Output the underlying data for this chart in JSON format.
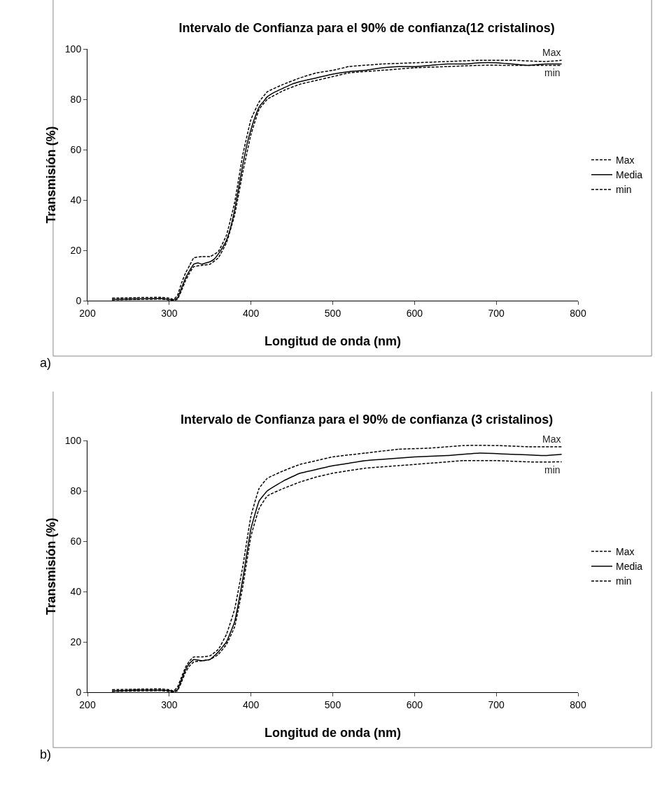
{
  "chart_data": [
    {
      "type": "line",
      "title": "Intervalo de Confianza para el 90% de confianza(12 cristalinos)",
      "xlabel": "Longitud de onda (nm)",
      "ylabel": "Transmisión (%)",
      "xlim": [
        200,
        800
      ],
      "xticks": [
        200,
        300,
        400,
        500,
        600,
        700,
        800
      ],
      "ylim": [
        0,
        100
      ],
      "yticks": [
        0,
        20,
        40,
        60,
        80,
        100
      ],
      "grid": false,
      "legend": "right",
      "marker": "none",
      "annotations": [
        "Max",
        "min",
        "a)"
      ],
      "series": [
        {
          "name": "Max",
          "color": "#000000",
          "line_style": "dashed",
          "x": [
            230,
            260,
            290,
            300,
            305,
            310,
            315,
            320,
            325,
            330,
            340,
            350,
            360,
            370,
            380,
            390,
            400,
            410,
            420,
            440,
            460,
            480,
            500,
            520,
            560,
            600,
            640,
            680,
            720,
            760,
            780
          ],
          "values": [
            1,
            1.2,
            1.3,
            1,
            0.5,
            2,
            7,
            11,
            14,
            17,
            17.5,
            17.5,
            19.5,
            26,
            39,
            58,
            72,
            79,
            83,
            86,
            88.5,
            90.5,
            91.5,
            93,
            94,
            94.5,
            95,
            95.5,
            95.5,
            95,
            95.5
          ]
        },
        {
          "name": "Media",
          "color": "#000000",
          "line_style": "solid",
          "x": [
            230,
            260,
            290,
            300,
            305,
            310,
            315,
            320,
            325,
            330,
            335,
            340,
            345,
            350,
            355,
            360,
            365,
            370,
            375,
            380,
            385,
            390,
            395,
            400,
            405,
            410,
            415,
            420,
            430,
            440,
            450,
            460,
            480,
            500,
            520,
            540,
            560,
            580,
            600,
            620,
            640,
            660,
            680,
            700,
            720,
            740,
            760,
            780
          ],
          "values": [
            0.5,
            0.7,
            0.8,
            0.5,
            0.3,
            1,
            5,
            9,
            12,
            14.5,
            15,
            14.5,
            15,
            15.5,
            16.5,
            18.5,
            21,
            24,
            29,
            36,
            45,
            54,
            62,
            68,
            73,
            77,
            79,
            81,
            83,
            84.5,
            86,
            87,
            88.5,
            90,
            91,
            91.5,
            92.5,
            93,
            93,
            93.5,
            94,
            94,
            94.5,
            94.5,
            94,
            93.5,
            94,
            94
          ]
        },
        {
          "name": "min",
          "color": "#000000",
          "line_style": "dashed",
          "x": [
            230,
            260,
            290,
            300,
            305,
            310,
            315,
            320,
            325,
            330,
            340,
            350,
            360,
            370,
            380,
            390,
            400,
            410,
            420,
            440,
            460,
            480,
            500,
            520,
            560,
            600,
            640,
            680,
            720,
            760,
            780
          ],
          "values": [
            0.3,
            0.5,
            0.6,
            0.3,
            0.2,
            0.5,
            4,
            8,
            11,
            13.5,
            14,
            14.5,
            17,
            23,
            34,
            51,
            66,
            76,
            80,
            83.5,
            86,
            87.5,
            89,
            90.5,
            91.5,
            92.5,
            93,
            93.5,
            93.5,
            93.5,
            93.5
          ]
        }
      ]
    },
    {
      "type": "line",
      "title": "Intervalo de Confianza para el 90% de confianza (3 cristalinos)",
      "xlabel": "Longitud de onda (nm)",
      "ylabel": "Transmisión (%)",
      "xlim": [
        200,
        800
      ],
      "xticks": [
        200,
        300,
        400,
        500,
        600,
        700,
        800
      ],
      "ylim": [
        0,
        100
      ],
      "yticks": [
        0,
        20,
        40,
        60,
        80,
        100
      ],
      "grid": false,
      "legend": "right",
      "marker": "none",
      "annotations": [
        "Max",
        "min",
        "b)"
      ],
      "series": [
        {
          "name": "Max",
          "color": "#000000",
          "line_style": "dashed",
          "x": [
            230,
            260,
            290,
            300,
            305,
            310,
            315,
            320,
            325,
            330,
            340,
            350,
            360,
            370,
            380,
            390,
            400,
            410,
            420,
            440,
            460,
            480,
            500,
            540,
            580,
            620,
            660,
            700,
            740,
            780
          ],
          "values": [
            1,
            1.2,
            1.3,
            1,
            0.5,
            2,
            6,
            10,
            12.5,
            14,
            14,
            14.5,
            17,
            23,
            33,
            50,
            70,
            81,
            85,
            88,
            90.5,
            92,
            93.5,
            95,
            96.5,
            97,
            98,
            98,
            97.5,
            97.5
          ]
        },
        {
          "name": "Media",
          "color": "#000000",
          "line_style": "solid",
          "x": [
            230,
            260,
            290,
            300,
            305,
            310,
            315,
            320,
            325,
            330,
            340,
            350,
            360,
            370,
            380,
            390,
            400,
            410,
            420,
            440,
            460,
            480,
            500,
            520,
            540,
            560,
            600,
            640,
            680,
            720,
            760,
            780
          ],
          "values": [
            0.5,
            0.8,
            0.8,
            0.6,
            0.3,
            1,
            5,
            9,
            11.5,
            13,
            12.5,
            13,
            16,
            20,
            28,
            45,
            65,
            76,
            80,
            84,
            87,
            88.5,
            90,
            91,
            92,
            92.5,
            93.5,
            94,
            95,
            94.5,
            94,
            94.5
          ]
        },
        {
          "name": "min",
          "color": "#000000",
          "line_style": "dashed",
          "x": [
            230,
            260,
            290,
            300,
            305,
            310,
            315,
            320,
            325,
            330,
            340,
            350,
            360,
            370,
            380,
            390,
            400,
            410,
            420,
            440,
            460,
            480,
            500,
            540,
            580,
            620,
            660,
            700,
            740,
            780
          ],
          "values": [
            0.3,
            0.5,
            0.6,
            0.3,
            0.2,
            0.5,
            4,
            8,
            10.5,
            12,
            12.5,
            13,
            15,
            19,
            26,
            42,
            62,
            73,
            78,
            81,
            83.5,
            85.5,
            87,
            89,
            90,
            91,
            92,
            92,
            91.5,
            91.5
          ]
        }
      ]
    }
  ]
}
